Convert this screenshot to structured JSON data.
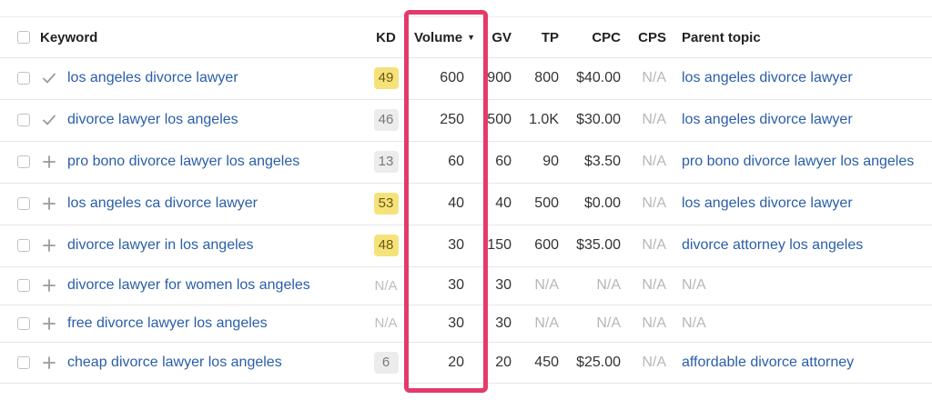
{
  "colors": {
    "link": "#2a5ea8",
    "highlight_border": "#e33a6a",
    "kd_yellow": "#f6e27a",
    "kd_gray": "#ececec",
    "na_text": "#b7b7b7"
  },
  "header": {
    "keyword": "Keyword",
    "kd": "KD",
    "volume": "Volume",
    "volume_sort_icon": "caret-down-icon",
    "gv": "GV",
    "tp": "TP",
    "cpc": "CPC",
    "cps": "CPS",
    "parent_topic": "Parent topic"
  },
  "rows": [
    {
      "action_icon": "check-icon",
      "keyword": "los angeles divorce lawyer",
      "kd": "49",
      "kd_style": "yellow",
      "volume": "600",
      "gv": "900",
      "tp": "800",
      "cpc": "$40.00",
      "cps": "N/A",
      "parent_topic": "los angeles divorce lawyer"
    },
    {
      "action_icon": "check-icon",
      "keyword": "divorce lawyer los angeles",
      "kd": "46",
      "kd_style": "gray",
      "volume": "250",
      "gv": "500",
      "tp": "1.0K",
      "cpc": "$30.00",
      "cps": "N/A",
      "parent_topic": "los angeles divorce lawyer"
    },
    {
      "action_icon": "plus-icon",
      "keyword": "pro bono divorce lawyer los angeles",
      "kd": "13",
      "kd_style": "gray",
      "volume": "60",
      "gv": "60",
      "tp": "90",
      "cpc": "$3.50",
      "cps": "N/A",
      "parent_topic": "pro bono divorce lawyer los angeles"
    },
    {
      "action_icon": "plus-icon",
      "keyword": "los angeles ca divorce lawyer",
      "kd": "53",
      "kd_style": "yellow",
      "volume": "40",
      "gv": "40",
      "tp": "500",
      "cpc": "$0.00",
      "cps": "N/A",
      "parent_topic": "los angeles divorce lawyer"
    },
    {
      "action_icon": "plus-icon",
      "keyword": "divorce lawyer in los angeles",
      "kd": "48",
      "kd_style": "yellow",
      "volume": "30",
      "gv": "150",
      "tp": "600",
      "cpc": "$35.00",
      "cps": "N/A",
      "parent_topic": "divorce attorney los angeles"
    },
    {
      "action_icon": "plus-icon",
      "keyword": "divorce lawyer for women los angeles",
      "kd": "N/A",
      "kd_style": "na",
      "volume": "30",
      "gv": "30",
      "tp": "N/A",
      "cpc": "N/A",
      "cps": "N/A",
      "parent_topic": "N/A"
    },
    {
      "action_icon": "plus-icon",
      "keyword": "free divorce lawyer los angeles",
      "kd": "N/A",
      "kd_style": "na",
      "volume": "30",
      "gv": "30",
      "tp": "N/A",
      "cpc": "N/A",
      "cps": "N/A",
      "parent_topic": "N/A"
    },
    {
      "action_icon": "plus-icon",
      "keyword": "cheap divorce lawyer los angeles",
      "kd": "6",
      "kd_style": "gray",
      "volume": "20",
      "gv": "20",
      "tp": "450",
      "cpc": "$25.00",
      "cps": "N/A",
      "parent_topic": "affordable divorce attorney"
    }
  ]
}
